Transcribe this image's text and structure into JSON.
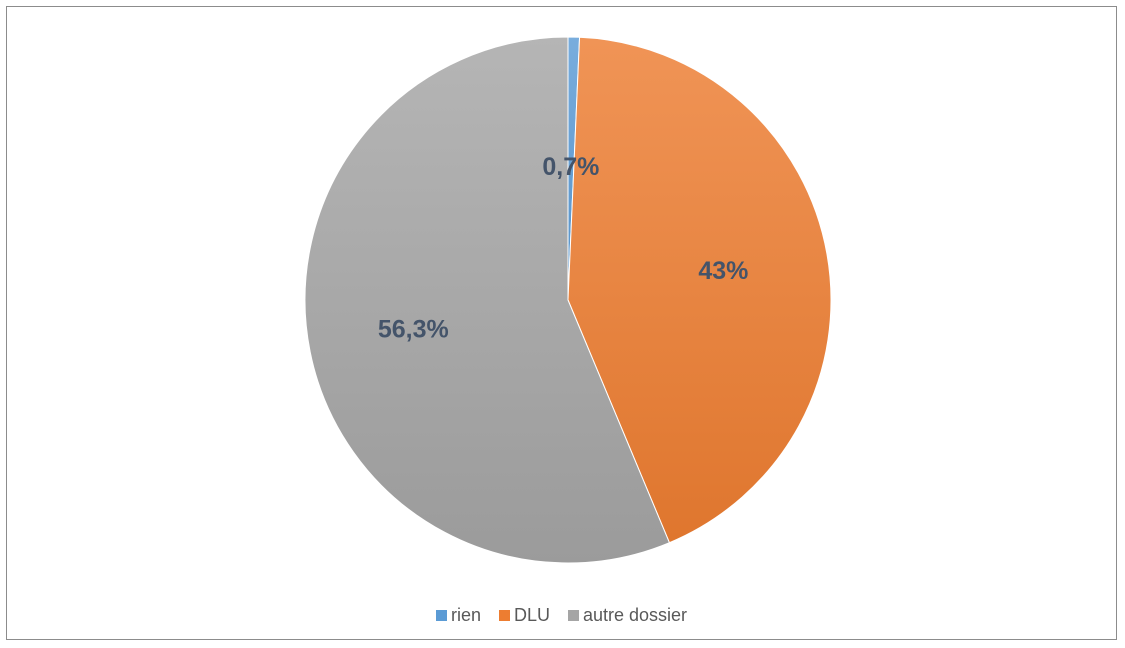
{
  "chart_data": {
    "type": "pie",
    "categories": [
      "rien",
      "DLU",
      "autre dossier"
    ],
    "values": [
      0.7,
      43,
      56.3
    ],
    "data_labels": [
      "0,7%",
      "43%",
      "56,3%"
    ],
    "colors": [
      "#5b9bd5",
      "#ed7d31",
      "#a5a5a5"
    ],
    "start_angle_deg": 0,
    "direction": "clockwise",
    "legend_position": "bottom"
  }
}
